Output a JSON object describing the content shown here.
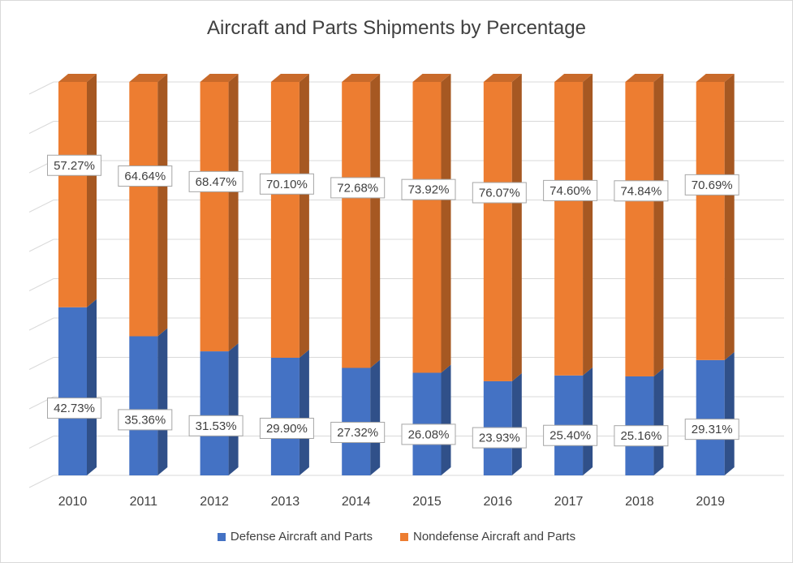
{
  "chart_data": {
    "type": "bar",
    "stacked": true,
    "style": "3d-column",
    "title": "Aircraft and Parts Shipments by Percentage",
    "categories": [
      "2010",
      "2011",
      "2012",
      "2013",
      "2014",
      "2015",
      "2016",
      "2017",
      "2018",
      "2019"
    ],
    "series": [
      {
        "name": "Defense Aircraft and Parts",
        "color": "#4472c4",
        "values": [
          42.73,
          35.36,
          31.53,
          29.9,
          27.32,
          26.08,
          23.93,
          25.4,
          25.16,
          29.31
        ],
        "labels": [
          "42.73%",
          "35.36%",
          "31.53%",
          "29.90%",
          "27.32%",
          "26.08%",
          "23.93%",
          "25.40%",
          "25.16%",
          "29.31%"
        ]
      },
      {
        "name": "Nondefense Aircraft and Parts",
        "color": "#ed7d31",
        "values": [
          57.27,
          64.64,
          68.47,
          70.1,
          72.68,
          73.92,
          76.07,
          74.6,
          74.84,
          70.69
        ],
        "labels": [
          "57.27%",
          "64.64%",
          "68.47%",
          "70.10%",
          "72.68%",
          "73.92%",
          "76.07%",
          "74.60%",
          "74.84%",
          "70.69%"
        ]
      }
    ],
    "ylim": [
      0,
      100
    ],
    "grid": true,
    "legend_position": "bottom"
  }
}
